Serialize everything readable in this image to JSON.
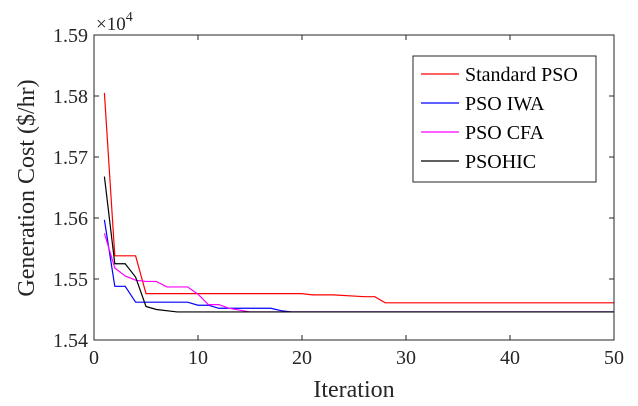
{
  "chart_data": {
    "type": "line",
    "title": "",
    "xlabel": "Iteration",
    "ylabel": "Generation Cost ($/hr)",
    "y_multiplier_label": "×10",
    "y_multiplier_exponent": "4",
    "xlim": [
      0,
      50
    ],
    "ylim": [
      1.54,
      1.59
    ],
    "x_ticks": [
      0,
      10,
      20,
      30,
      40,
      50
    ],
    "x_tick_labels": [
      "0",
      "10",
      "20",
      "30",
      "40",
      "50"
    ],
    "y_ticks": [
      1.54,
      1.55,
      1.56,
      1.57,
      1.58,
      1.59
    ],
    "y_tick_labels": [
      "1.54",
      "1.55",
      "1.56",
      "1.57",
      "1.58",
      "1.59"
    ],
    "grid": false,
    "legend_position": "top-right",
    "series": [
      {
        "name": "Standard PSO",
        "color": "#ff0000",
        "x": [
          1,
          2,
          3,
          4,
          5,
          10,
          20,
          21,
          22,
          23,
          26,
          27,
          28,
          29,
          50
        ],
        "y": [
          1.5805,
          1.5538,
          1.5538,
          1.5538,
          1.5476,
          1.5476,
          1.5476,
          1.5474,
          1.5474,
          1.5474,
          1.5471,
          1.5471,
          1.5461,
          1.5461,
          1.5461
        ]
      },
      {
        "name": "PSO IWA",
        "color": "#0000ff",
        "x": [
          1,
          2,
          3,
          4,
          5,
          9,
          10,
          11,
          12,
          17,
          18,
          19,
          50
        ],
        "y": [
          1.5597,
          1.5488,
          1.5488,
          1.5462,
          1.5462,
          1.5462,
          1.5457,
          1.5457,
          1.5452,
          1.5452,
          1.5448,
          1.5446,
          1.5446
        ]
      },
      {
        "name": "PSO CFA",
        "color": "#ff00ff",
        "x": [
          1,
          2,
          3,
          4,
          5,
          6,
          7,
          9,
          10,
          11,
          12,
          13,
          15,
          50
        ],
        "y": [
          1.5575,
          1.5518,
          1.5505,
          1.5498,
          1.5496,
          1.5496,
          1.5487,
          1.5487,
          1.5475,
          1.5458,
          1.5458,
          1.5452,
          1.5446,
          1.5446
        ]
      },
      {
        "name": "PSOHIC",
        "color": "#000000",
        "x": [
          1,
          2,
          3,
          4,
          5,
          6,
          8,
          50
        ],
        "y": [
          1.5668,
          1.5525,
          1.5525,
          1.5503,
          1.5455,
          1.545,
          1.5446,
          1.5446
        ]
      }
    ]
  }
}
